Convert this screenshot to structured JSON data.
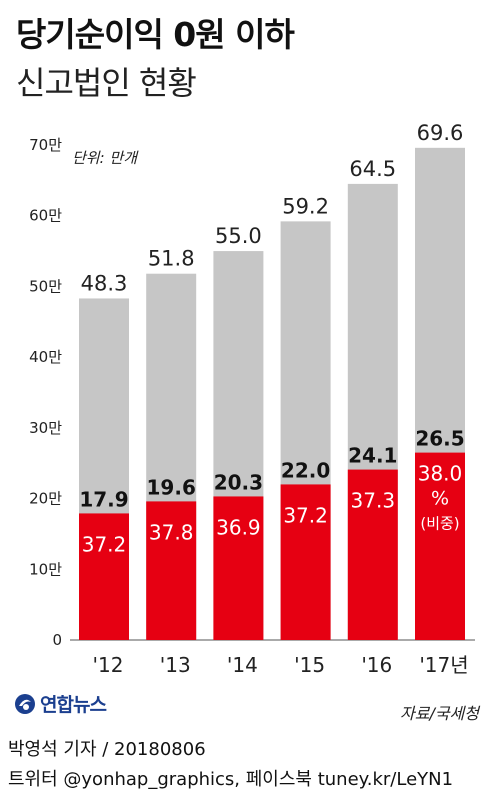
{
  "title": "당기순이익 0원 이하",
  "subtitle": "신고법인 현황",
  "unit": "단위: 만개",
  "logo_text": "연합뉴스",
  "source": "자료/국세청",
  "footer": {
    "line1": "박영석 기자 / 20180806",
    "line2": "트위터 @yonhap_graphics, 페이스북 tuney.kr/LeYN1"
  },
  "colors": {
    "total_bar": "#c6c6c6",
    "subset_bar": "#e60012",
    "text": "#222222"
  },
  "chart_data": {
    "type": "bar",
    "categories": [
      "'12",
      "'13",
      "'14",
      "'15",
      "'16",
      "'17년"
    ],
    "series": [
      {
        "values": [
          48.3,
          51.8,
          55.0,
          59.2,
          64.5,
          69.6
        ]
      },
      {
        "values": [
          17.9,
          19.6,
          20.3,
          22.0,
          24.1,
          26.5
        ]
      }
    ],
    "share_labels": [
      "37.2",
      "37.8",
      "36.9",
      "37.2",
      "37.3",
      "38.0"
    ],
    "share_last_suffix": [
      "%",
      "(비중)"
    ],
    "yticks": [
      "0",
      "10만",
      "20만",
      "30만",
      "40만",
      "50만",
      "60만",
      "70만"
    ],
    "ylim": [
      0,
      70
    ],
    "grid": false
  }
}
